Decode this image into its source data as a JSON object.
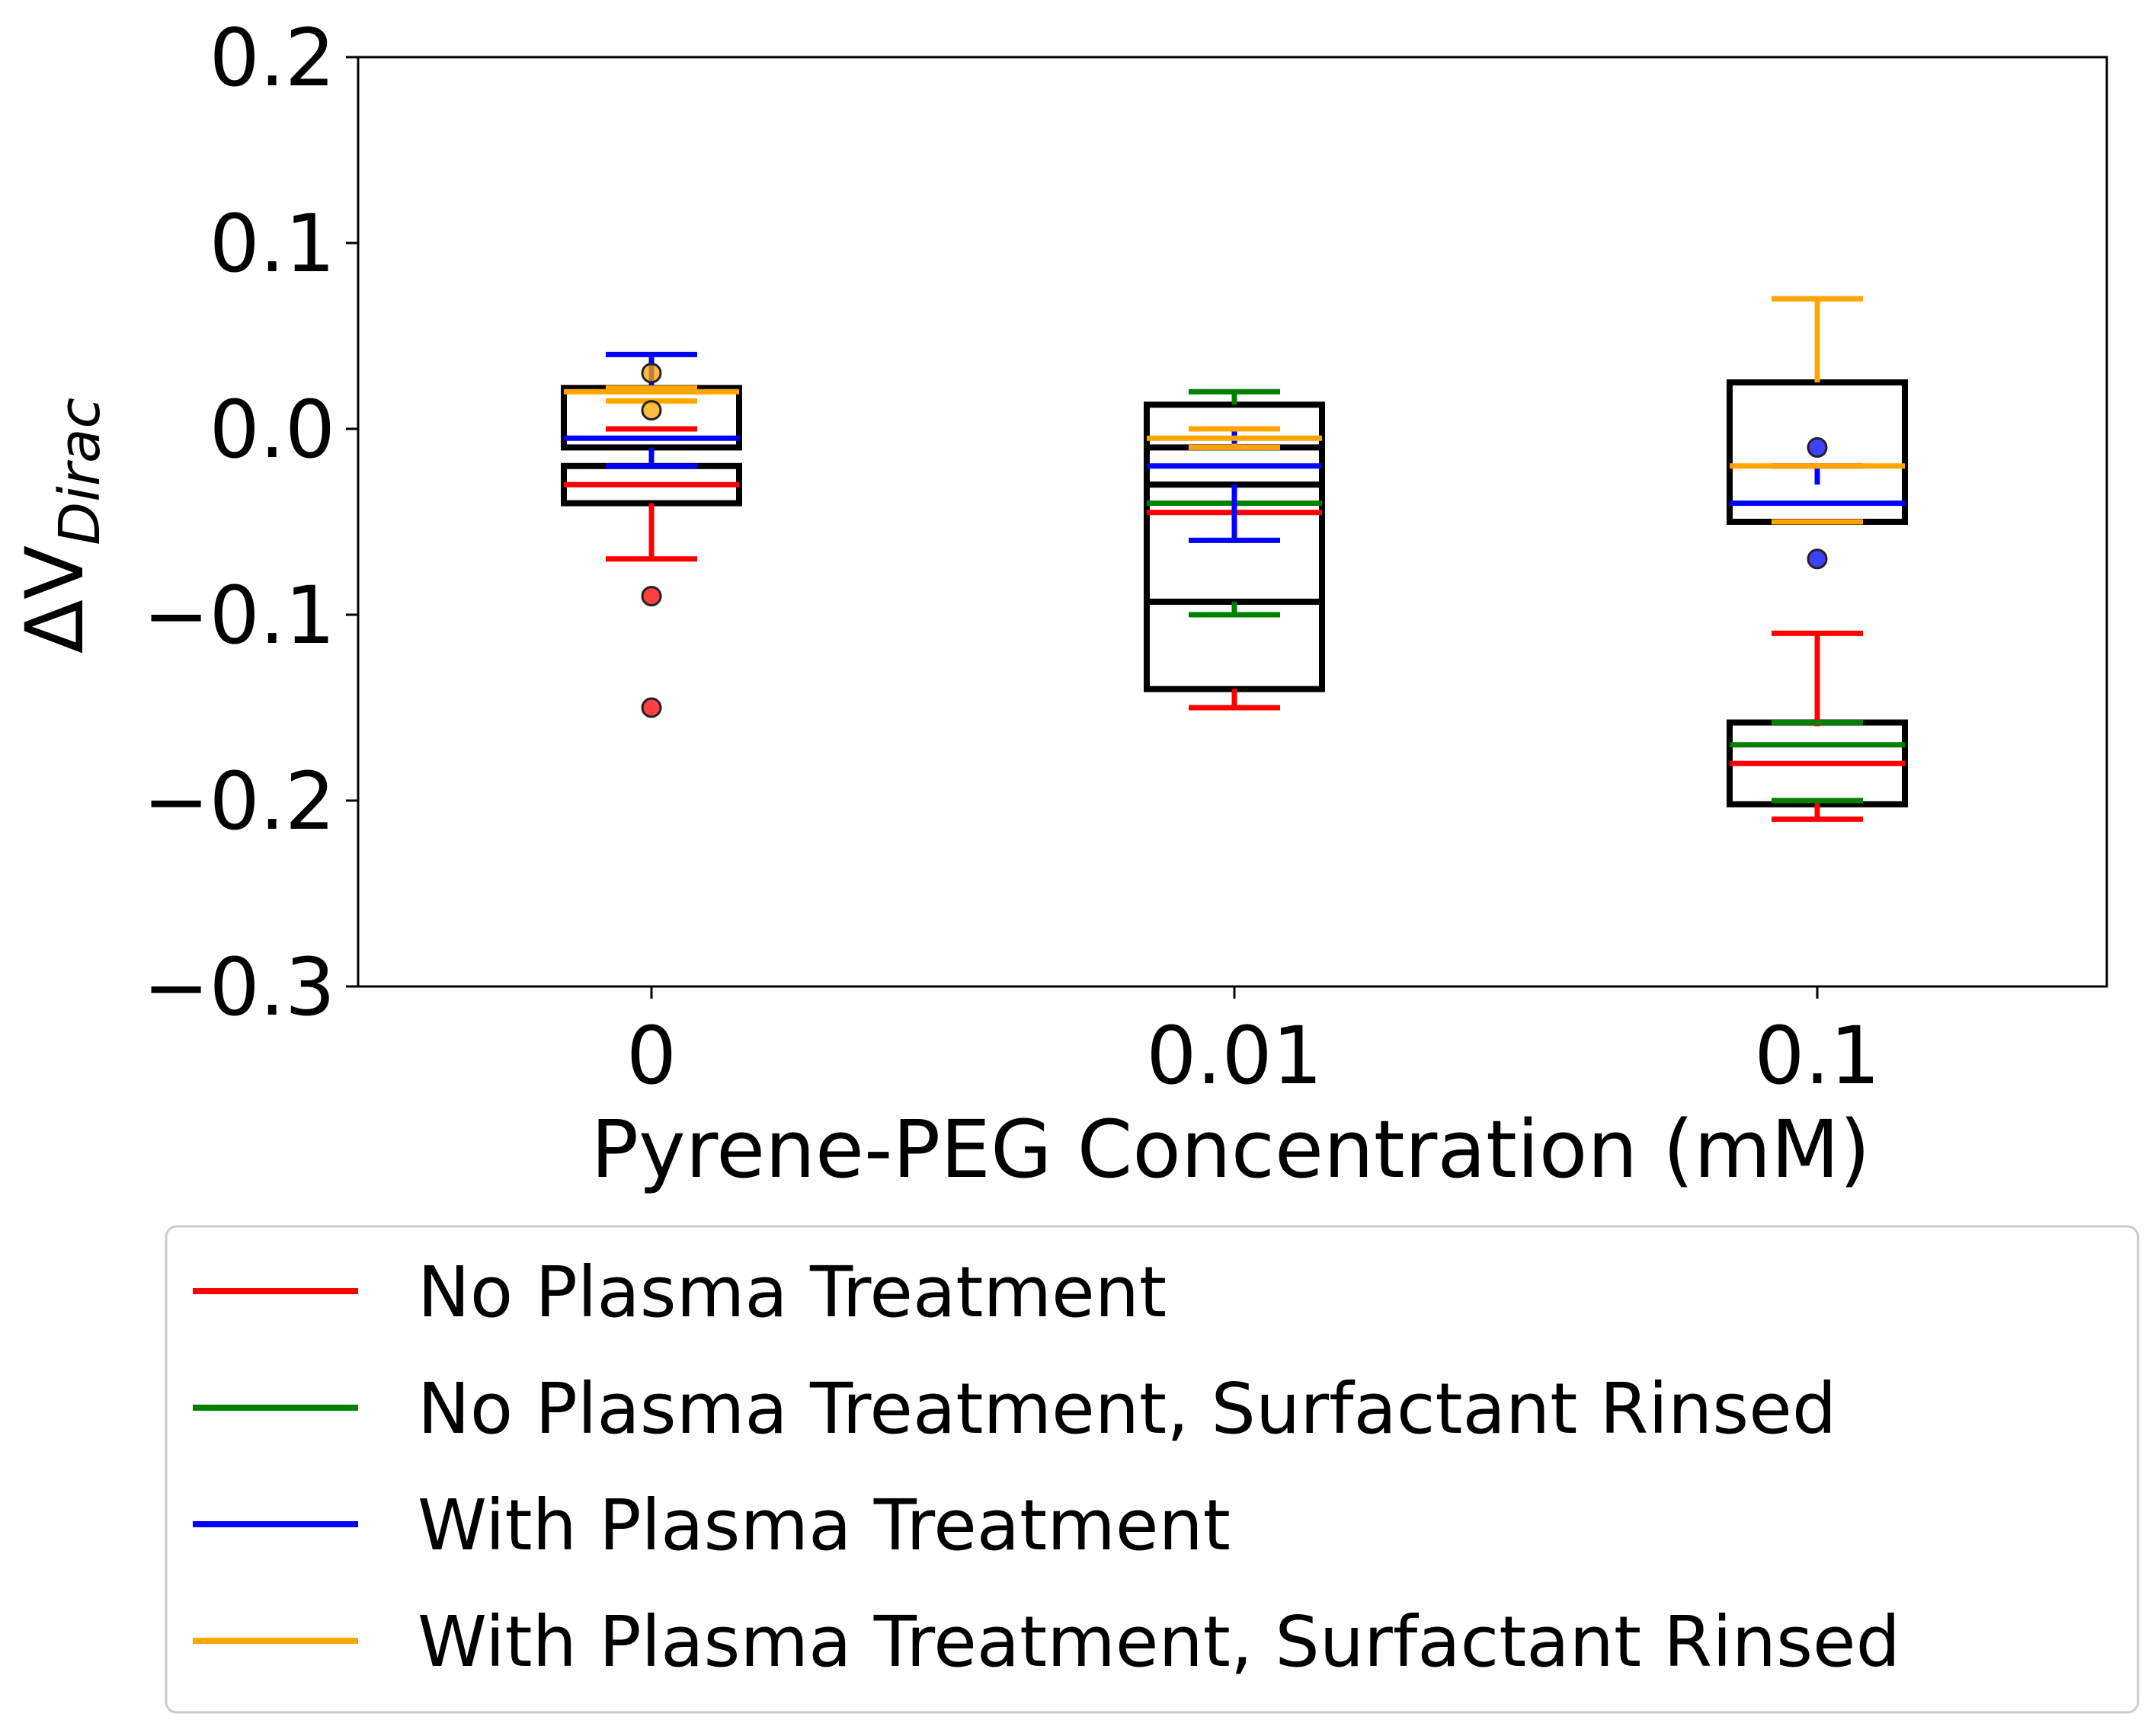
{
  "chart_data": {
    "type": "box",
    "title": "",
    "xlabel": "Pyrene-PEG Concentration (mM)",
    "ylabel": {
      "main": "ΔV",
      "sub": "Dirac"
    },
    "ylim": [
      -0.3,
      0.2
    ],
    "yticks": [
      0.2,
      0.1,
      0.0,
      -0.1,
      -0.2,
      -0.3
    ],
    "ytick_labels": [
      "0.2",
      "0.1",
      "0.0",
      "−0.1",
      "−0.2",
      "−0.3"
    ],
    "categories": [
      "0",
      "0.01",
      "0.1"
    ],
    "grid": false,
    "legend_position": "below",
    "series": [
      {
        "name": "No Plasma Treatment",
        "color": "#ff0000",
        "boxes": [
          {
            "whisker_low": -0.07,
            "q1": -0.04,
            "median": -0.03,
            "q3": 0.0,
            "whisker_high": 0.0,
            "outliers": [
              -0.09,
              -0.15
            ]
          },
          {
            "whisker_low": -0.15,
            "q1": -0.14,
            "median": -0.045,
            "q3": -0.01,
            "whisker_high": -0.01,
            "outliers": []
          },
          {
            "whisker_low": -0.21,
            "q1": -0.2,
            "median": -0.18,
            "q3": -0.16,
            "whisker_high": -0.11,
            "outliers": []
          }
        ]
      },
      {
        "name": "No Plasma Treatment, Surfactant Rinsed",
        "color": "#008000",
        "boxes": [
          {
            "whisker_low": -0.1,
            "q1": -0.093,
            "median": -0.04,
            "q3": 0.013,
            "whisker_high": 0.02,
            "outliers": []
          },
          {
            "whisker_low": -0.2,
            "q1": -0.2,
            "median": -0.17,
            "q3": -0.158,
            "whisker_high": -0.158,
            "outliers": []
          }
        ],
        "positions": [
          1,
          2
        ]
      },
      {
        "name": "With Plasma Treatment",
        "color": "#0000ff",
        "boxes": [
          {
            "whisker_low": -0.02,
            "q1": -0.01,
            "median": -0.005,
            "q3": 0.02,
            "whisker_high": 0.04,
            "outliers": []
          },
          {
            "whisker_low": -0.06,
            "q1": -0.03,
            "median": -0.02,
            "q3": -0.01,
            "whisker_high": 0.0,
            "outliers": []
          },
          {
            "whisker_low": -0.05,
            "q1": -0.05,
            "median": -0.04,
            "q3": -0.03,
            "whisker_high": -0.02,
            "outliers": [
              -0.01,
              -0.07
            ]
          }
        ]
      },
      {
        "name": "With Plasma Treatment, Surfactant Rinsed",
        "color": "#ffa500",
        "boxes": [
          {
            "whisker_low": 0.015,
            "q1": 0.015,
            "median": 0.02,
            "q3": 0.022,
            "whisker_high": 0.022,
            "outliers": [
              0.03,
              0.01
            ]
          },
          {
            "whisker_low": -0.01,
            "q1": -0.008,
            "median": -0.005,
            "q3": 0.0,
            "whisker_high": 0.0,
            "outliers": []
          },
          {
            "whisker_low": -0.05,
            "q1": -0.05,
            "median": -0.02,
            "q3": 0.025,
            "whisker_high": 0.07,
            "outliers": []
          }
        ]
      }
    ],
    "black_boxes": [
      {
        "position": 0,
        "boxes": [
          {
            "q1": -0.04,
            "q3": -0.02
          },
          {
            "q1": -0.01,
            "q3": 0.022
          }
        ]
      },
      {
        "position": 1,
        "boxes": [
          {
            "q1": -0.14,
            "q3": -0.093
          },
          {
            "q1": -0.093,
            "q3": 0.013
          },
          {
            "q1": -0.03,
            "q3": -0.01
          }
        ]
      },
      {
        "position": 2,
        "boxes": [
          {
            "q1": -0.05,
            "q3": 0.025
          },
          {
            "q1": -0.202,
            "q3": -0.158
          }
        ]
      }
    ]
  }
}
